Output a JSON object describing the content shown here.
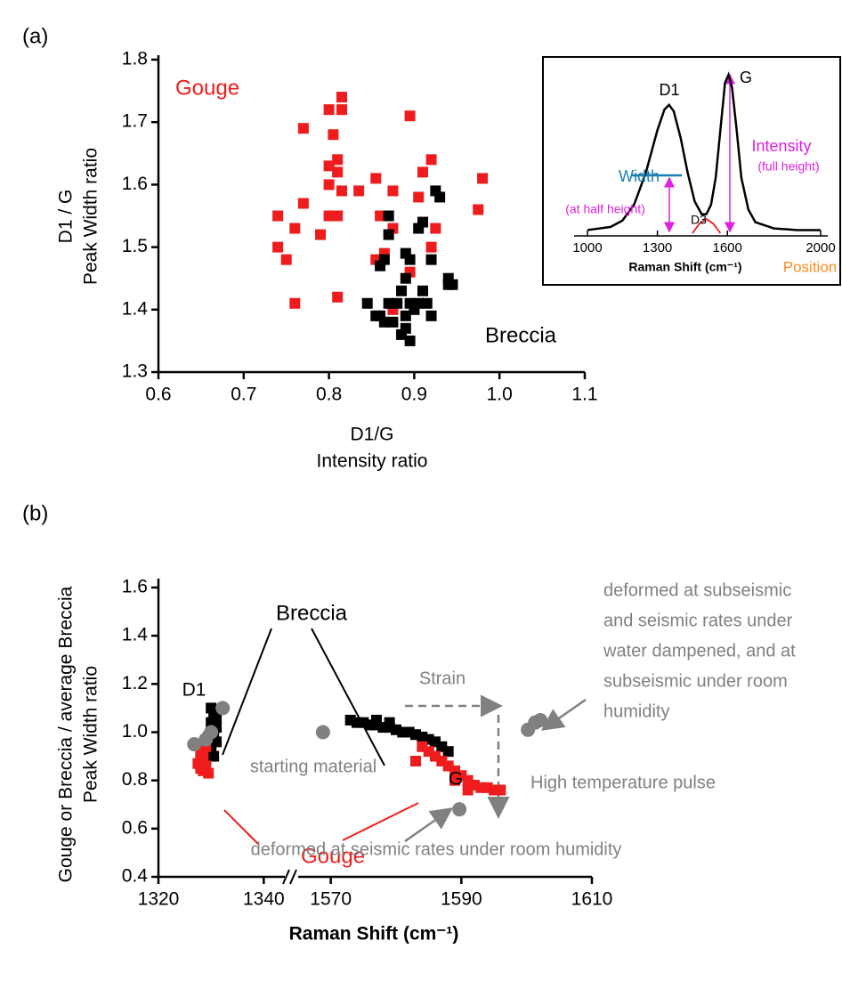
{
  "chart_data": [
    {
      "type": "scatter",
      "label": "(a)",
      "xlabel": [
        "D1/G",
        "Intensity ratio"
      ],
      "ylabel": [
        "D1 / G",
        "Peak Width ratio"
      ],
      "xlim": [
        0.6,
        1.1
      ],
      "ylim": [
        1.3,
        1.8
      ],
      "xticks": [
        0.6,
        0.7,
        0.8,
        0.9,
        {
          "value": 1.0,
          "label": "1.0"
        },
        1.1
      ],
      "yticks": [
        1.3,
        1.4,
        1.5,
        1.6,
        1.7,
        1.8
      ],
      "series": [
        {
          "name": "Gouge",
          "color": "#ee1c1c",
          "x": [
            0.815,
            0.815,
            0.8,
            0.895,
            0.77,
            0.805,
            0.81,
            0.8,
            0.81,
            0.92,
            0.855,
            0.8,
            0.815,
            0.835,
            0.875,
            0.905,
            0.91,
            0.98,
            0.77,
            0.975,
            0.74,
            0.8,
            0.81,
            0.86,
            0.79,
            0.76,
            0.875,
            0.925,
            0.74,
            0.92,
            0.75,
            0.855,
            0.865,
            0.895,
            0.81,
            0.76,
            0.875
          ],
          "values": [
            1.74,
            1.72,
            1.72,
            1.71,
            1.69,
            1.68,
            1.64,
            1.63,
            1.62,
            1.64,
            1.61,
            1.6,
            1.59,
            1.59,
            1.59,
            1.58,
            1.62,
            1.61,
            1.57,
            1.56,
            1.55,
            1.55,
            1.55,
            1.55,
            1.52,
            1.53,
            1.53,
            1.53,
            1.5,
            1.5,
            1.48,
            1.48,
            1.49,
            1.46,
            1.42,
            1.41,
            1.4
          ]
        },
        {
          "name": "Breccia",
          "color": "#000000",
          "x": [
            0.925,
            0.93,
            0.91,
            0.905,
            0.87,
            0.87,
            0.865,
            0.86,
            0.89,
            0.895,
            0.92,
            0.89,
            0.885,
            0.91,
            0.94,
            0.945,
            0.94,
            0.845,
            0.87,
            0.88,
            0.895,
            0.905,
            0.915,
            0.86,
            0.865,
            0.875,
            0.855,
            0.89,
            0.92,
            0.89,
            0.885,
            0.895,
            0.9
          ],
          "values": [
            1.59,
            1.58,
            1.54,
            1.53,
            1.55,
            1.52,
            1.48,
            1.47,
            1.49,
            1.48,
            1.48,
            1.45,
            1.43,
            1.43,
            1.45,
            1.44,
            1.44,
            1.41,
            1.41,
            1.41,
            1.41,
            1.41,
            1.41,
            1.39,
            1.38,
            1.38,
            1.39,
            1.39,
            1.39,
            1.37,
            1.36,
            1.35,
            1.4
          ]
        }
      ]
    },
    {
      "type": "line",
      "xlabel": "Raman Shift (cm⁻¹)",
      "xlim": [
        1000,
        2000
      ],
      "ylim": [
        0,
        1
      ],
      "xticks": [
        1000,
        1300,
        1600,
        2000
      ],
      "series": [
        {
          "color": "#000000",
          "x": [
            1000,
            1100,
            1150,
            1200,
            1250,
            1300,
            1330,
            1350,
            1370,
            1400,
            1430,
            1460,
            1490,
            1510,
            1530,
            1550,
            1570,
            1590,
            1605,
            1620,
            1640,
            1660,
            1690,
            1720,
            1800,
            1900,
            2000
          ],
          "values": [
            0.02,
            0.04,
            0.08,
            0.18,
            0.38,
            0.65,
            0.78,
            0.81,
            0.77,
            0.6,
            0.38,
            0.2,
            0.12,
            0.12,
            0.18,
            0.35,
            0.65,
            0.95,
            1.0,
            0.92,
            0.65,
            0.35,
            0.15,
            0.07,
            0.03,
            0.02,
            0.02
          ]
        },
        {
          "color": "#ee1c1c",
          "x": [
            1450,
            1480,
            1510,
            1540,
            1570
          ],
          "values": [
            0,
            0.06,
            0.09,
            0.06,
            0
          ]
        }
      ],
      "annotations": [
        "D1",
        "G",
        "D3",
        "Width",
        "(at half height)",
        "Intensity",
        "(full height)",
        "Position"
      ]
    },
    {
      "type": "scatter",
      "label": "(b)",
      "xlabel": [
        "Raman Shift (cm⁻¹)"
      ],
      "ylabel": [
        "Gouge or Breccia / average Breccia",
        "Peak Width ratio"
      ],
      "xlim": [
        1320,
        1610
      ],
      "xbreak": [
        1344,
        1565
      ],
      "ylim": [
        0.4,
        1.6
      ],
      "xticks": [
        1320,
        1340,
        1570,
        1590,
        1610
      ],
      "yticks": [
        0.4,
        0.6,
        0.8,
        {
          "value": 1.0,
          "label": "1.0"
        },
        1.2,
        1.4,
        1.6
      ],
      "series": [
        {
          "name": "Breccia",
          "color": "#000000",
          "x": [
            1330.5,
            1331,
            1330,
            1331,
            1330.5,
            1329.5,
            1331,
            1330,
            1329.5,
            1330.5,
            1329,
            1330,
            1573,
            1574,
            1575,
            1576,
            1577,
            1578,
            1579,
            1580,
            1581,
            1582,
            1583,
            1584,
            1585,
            1586,
            1587,
            1588,
            1577,
            1579
          ],
          "values": [
            1.08,
            1.06,
            1.04,
            1.02,
            1.0,
            0.98,
            0.96,
            0.94,
            0.92,
            0.9,
            0.88,
            1.1,
            1.05,
            1.04,
            1.04,
            1.03,
            1.03,
            1.02,
            1.02,
            1.01,
            1.0,
            1.0,
            0.99,
            0.98,
            0.97,
            0.96,
            0.94,
            0.92,
            1.05,
            1.04
          ]
        },
        {
          "name": "Gouge",
          "color": "#ee1c1c",
          "x": [
            1328,
            1328.5,
            1328,
            1329,
            1328.5,
            1329.5,
            1328,
            1329,
            1327.5,
            1584,
            1585,
            1586,
            1587,
            1588,
            1589,
            1590,
            1591,
            1592,
            1593,
            1594,
            1595,
            1596,
            1583,
            1589,
            1591
          ],
          "values": [
            0.92,
            0.9,
            0.88,
            0.86,
            0.84,
            0.83,
            0.85,
            0.94,
            0.87,
            0.94,
            0.92,
            0.9,
            0.88,
            0.86,
            0.84,
            0.82,
            0.8,
            0.78,
            0.77,
            0.77,
            0.76,
            0.76,
            0.88,
            0.8,
            0.76
          ]
        },
        {
          "color": "#808080",
          "x": [
            1326.8,
            1329,
            1330,
            1332.2,
            1568.8,
            1589.7,
            1600.2,
            1601.3,
            1602.1
          ],
          "values": [
            0.95,
            0.97,
            1.0,
            1.1,
            1.0,
            0.68,
            1.01,
            1.04,
            1.05
          ]
        }
      ],
      "annotations": [
        "D1",
        "G",
        "starting material",
        "Strain",
        "High temperature pulse",
        [
          "deformed at subseismic",
          "and seismic rates under",
          "water dampened, and at",
          "subseismic under room",
          "humidity"
        ],
        "deformed at seismic rates under room humidity"
      ]
    }
  ]
}
